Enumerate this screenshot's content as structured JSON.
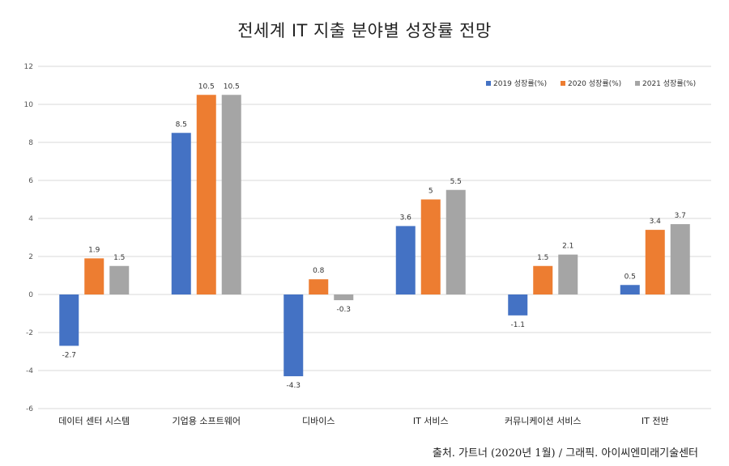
{
  "chart_data": {
    "type": "bar",
    "title": "전세계 IT 지출 분야별 성장률 전망",
    "xlabel": "",
    "ylabel": "",
    "ylim": [
      -6,
      12
    ],
    "yticks": [
      -6,
      -4,
      -2,
      0,
      2,
      4,
      6,
      8,
      10,
      12
    ],
    "grid": true,
    "legend_position": "top-right",
    "categories": [
      "데이터 센터 시스템",
      "기업용 소프트웨어",
      "디바이스",
      "IT 서비스",
      "커뮤니케이션 서비스",
      "IT 전반"
    ],
    "series": [
      {
        "name": "2019 성장률(%)",
        "color": "#4472C4",
        "values": [
          -2.7,
          8.5,
          -4.3,
          3.6,
          -1.1,
          0.5
        ]
      },
      {
        "name": "2020 성장률(%)",
        "color": "#ED7D31",
        "values": [
          1.9,
          10.5,
          0.8,
          5,
          1.5,
          3.4
        ]
      },
      {
        "name": "2021 성장률(%)",
        "color": "#A5A5A5",
        "values": [
          1.5,
          10.5,
          -0.3,
          5.5,
          2.1,
          3.7
        ]
      }
    ]
  },
  "source_note": "출처. 가트너 (2020년 1월) / 그래픽. 아이씨엔미래기술센터"
}
